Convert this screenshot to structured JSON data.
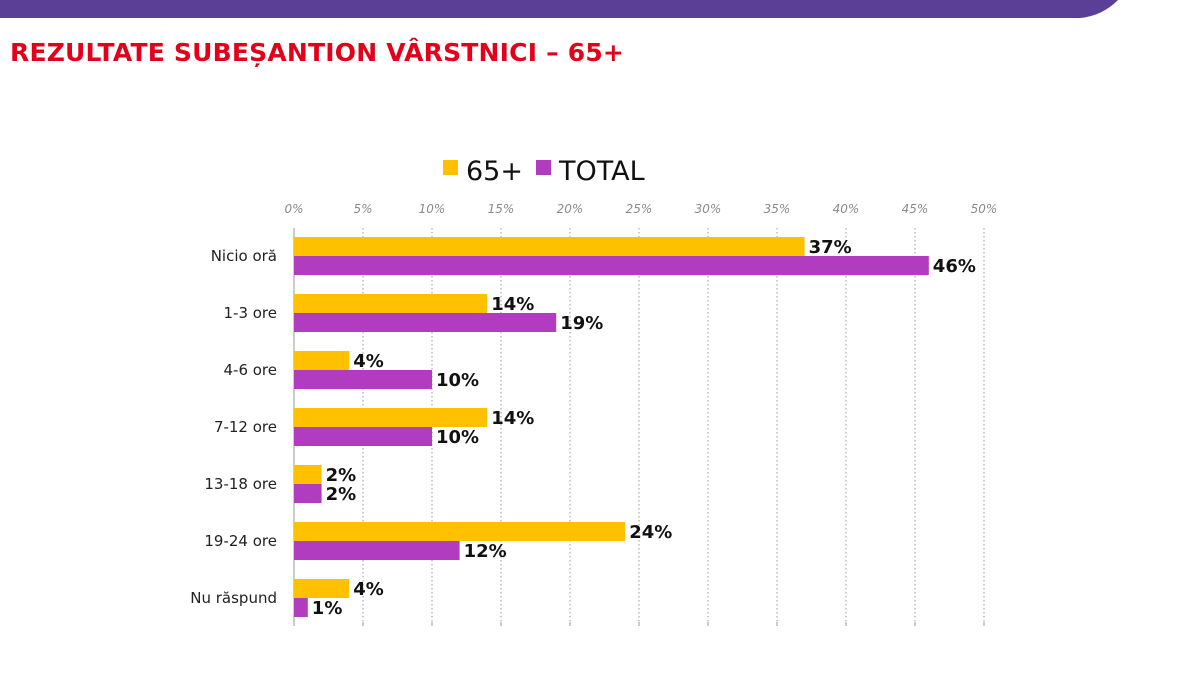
{
  "slide": {
    "title": "REZULTATE SUBEȘANTION VÂRSTNICI – 65+",
    "band_color": "#5b3e96",
    "title_color": "#e3001b"
  },
  "chart_data": {
    "type": "bar",
    "orientation": "horizontal",
    "title": "",
    "xlabel": "",
    "ylabel": "",
    "categories": [
      "Nicio oră",
      "1-3 ore",
      "4-6 ore",
      "7-12 ore",
      "13-18 ore",
      "19-24 ore",
      "Nu răspund"
    ],
    "series": [
      {
        "name": "65+",
        "color": "#ffc000",
        "values": [
          37,
          14,
          4,
          14,
          2,
          24,
          4
        ],
        "labels": [
          "37%",
          "14%",
          "4%",
          "14%",
          "2%",
          "24%",
          "4%"
        ]
      },
      {
        "name": "TOTAL",
        "color": "#b23cbf",
        "values": [
          46,
          19,
          10,
          10,
          2,
          12,
          1
        ],
        "labels": [
          "46%",
          "19%",
          "10%",
          "10%",
          "2%",
          "12%",
          "1%"
        ]
      }
    ],
    "xlim": [
      0,
      50
    ],
    "ticks": [
      0,
      5,
      10,
      15,
      20,
      25,
      30,
      35,
      40,
      45,
      50
    ],
    "tick_labels": [
      "0%",
      "5%",
      "10%",
      "15%",
      "20%",
      "25%",
      "30%",
      "35%",
      "40%",
      "45%",
      "50%"
    ],
    "grid": true,
    "legend": "top"
  }
}
